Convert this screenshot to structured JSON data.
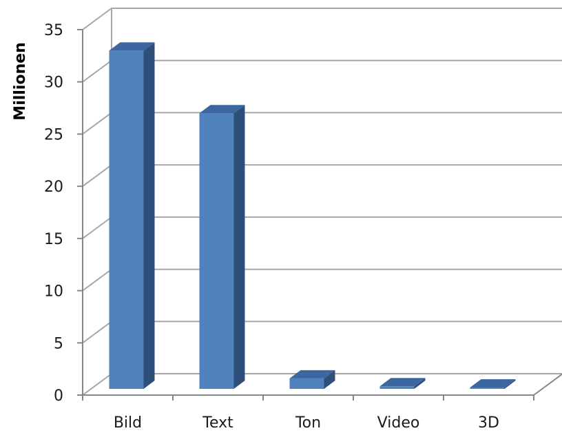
{
  "chart_data": {
    "type": "bar",
    "title": "",
    "xlabel": "",
    "ylabel": "Millionen",
    "ylim": [
      0,
      35
    ],
    "yticks": [
      0,
      5,
      10,
      15,
      20,
      25,
      30,
      35
    ],
    "categories": [
      "Bild",
      "Text",
      "Ton",
      "Video",
      "3D"
    ],
    "values": [
      32.4,
      26.4,
      1.0,
      0.25,
      0.05
    ],
    "grid": true,
    "legend": "none",
    "style": "3d-column",
    "colors": {
      "bar_front": "#4F81BD",
      "bar_side": "#2E4F7A",
      "bar_top": "#3C66A0",
      "gridline": "#a6a6a6",
      "axis": "#868686"
    }
  }
}
